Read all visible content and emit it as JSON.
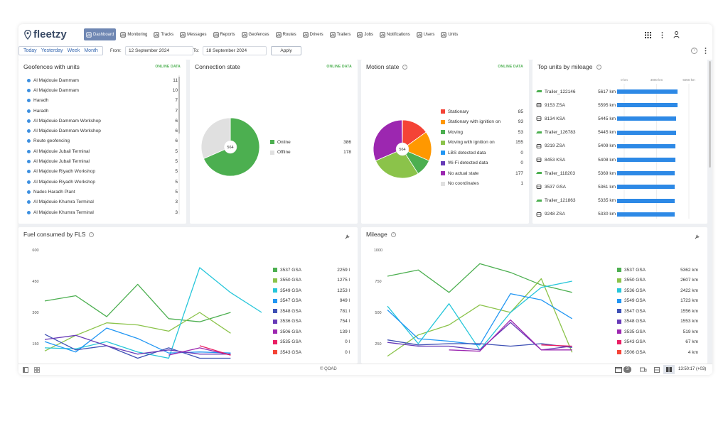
{
  "app": {
    "logo_text": "fleetzy"
  },
  "nav": [
    {
      "label": "Dashboard",
      "icon": "chart-icon",
      "active": true
    },
    {
      "label": "Monitoring",
      "icon": "globe-icon"
    },
    {
      "label": "Tracks",
      "icon": "tracks-icon"
    },
    {
      "label": "Messages",
      "icon": "messages-icon"
    },
    {
      "label": "Reports",
      "icon": "reports-icon"
    },
    {
      "label": "Geofences",
      "icon": "geofences-icon"
    },
    {
      "label": "Routes",
      "icon": "routes-icon"
    },
    {
      "label": "Drivers",
      "icon": "drivers-icon"
    },
    {
      "label": "Trailers",
      "icon": "trailers-icon"
    },
    {
      "label": "Jobs",
      "icon": "jobs-icon"
    },
    {
      "label": "Notifications",
      "icon": "notifications-icon"
    },
    {
      "label": "Users",
      "icon": "users-icon"
    },
    {
      "label": "Units",
      "icon": "units-icon"
    }
  ],
  "filter": {
    "periods": [
      "Today",
      "Yesterday",
      "Week",
      "Month"
    ],
    "from_label": "From:",
    "from_value": "12 September 2024",
    "to_label": "To:",
    "to_value": "18 September 2024",
    "apply_label": "Apply"
  },
  "online_data_label": "ONLINE DATA",
  "geofences": {
    "title": "Geofences with units",
    "items": [
      {
        "name": "Al Majdouie Dammam",
        "count": "11"
      },
      {
        "name": "Al Majdouie Dammam",
        "count": "10"
      },
      {
        "name": "Haradh",
        "count": "7"
      },
      {
        "name": "Haradh",
        "count": "7"
      },
      {
        "name": "Al Majdouie Dammam Workshop",
        "count": "6"
      },
      {
        "name": "Al Majdouie Dammam Workshop",
        "count": "6"
      },
      {
        "name": "Route geofencing",
        "count": "6"
      },
      {
        "name": "Al Majdouie Jubail Terminal",
        "count": "5"
      },
      {
        "name": "Al Majdouie Jubail Terminal",
        "count": "5"
      },
      {
        "name": "Al Majdouie Riyadh Workshop",
        "count": "5"
      },
      {
        "name": "Al Majdouie Riyadh Workshop",
        "count": "5"
      },
      {
        "name": "Nadec Haradh Plant",
        "count": "5"
      },
      {
        "name": "Al Majdouie Khumra Terminal",
        "count": "3"
      },
      {
        "name": "Al Majdouie Khumra Terminal",
        "count": "3"
      }
    ]
  },
  "connection": {
    "title": "Connection state",
    "total": "564",
    "items": [
      {
        "label": "Online",
        "value": 386,
        "color": "#4caf50"
      },
      {
        "label": "Offline",
        "value": 178,
        "color": "#e0e0e0"
      }
    ]
  },
  "motion": {
    "title": "Motion state",
    "total": "564",
    "items": [
      {
        "label": "Stationary",
        "value": 85,
        "color": "#f44336"
      },
      {
        "label": "Stationary with ignition on",
        "value": 93,
        "color": "#ff9800"
      },
      {
        "label": "Moving",
        "value": 53,
        "color": "#4caf50"
      },
      {
        "label": "Moving with ignition on",
        "value": 155,
        "color": "#8bc34a"
      },
      {
        "label": "LBS detected data",
        "value": 0,
        "color": "#2196f3"
      },
      {
        "label": "Wi-Fi detected data",
        "value": 0,
        "color": "#673ab7"
      },
      {
        "label": "No actual state",
        "value": 177,
        "color": "#9c27b0"
      },
      {
        "label": "No coordinates",
        "value": 1,
        "color": "#e0e0e0"
      }
    ]
  },
  "top_units": {
    "title": "Top units by mileage",
    "axis_ticks": [
      "0 km",
      "3000 km",
      "6000 km"
    ],
    "axis_max": 6000,
    "items": [
      {
        "name": "Trailer_122146",
        "km": 5617,
        "km_label": "5617 km",
        "type": "trailer"
      },
      {
        "name": "9153 ZSA",
        "km": 5595,
        "km_label": "5595 km",
        "type": "truck"
      },
      {
        "name": "8134 KSA",
        "km": 5445,
        "km_label": "5445 km",
        "type": "truck"
      },
      {
        "name": "Trailer_126783",
        "km": 5445,
        "km_label": "5445 km",
        "type": "trailer"
      },
      {
        "name": "9219 ZSA",
        "km": 5409,
        "km_label": "5409 km",
        "type": "truck"
      },
      {
        "name": "8453 KSA",
        "km": 5408,
        "km_label": "5408 km",
        "type": "truck"
      },
      {
        "name": "Trailer_118203",
        "km": 5369,
        "km_label": "5369 km",
        "type": "trailer"
      },
      {
        "name": "3537 GSA",
        "km": 5361,
        "km_label": "5361 km",
        "type": "truck"
      },
      {
        "name": "Trailer_121863",
        "km": 5335,
        "km_label": "5335 km",
        "type": "trailer"
      },
      {
        "name": "9248 ZSA",
        "km": 5330,
        "km_label": "5330 km",
        "type": "truck"
      }
    ]
  },
  "fuel": {
    "title": "Fuel consumed by FLS",
    "legend": [
      {
        "name": "3537 GSA",
        "value": "2259 l",
        "color": "#4caf50"
      },
      {
        "name": "3550 GSA",
        "value": "1275 l",
        "color": "#8bc34a"
      },
      {
        "name": "3549 GSA",
        "value": "1253 l",
        "color": "#26c6da"
      },
      {
        "name": "3547 GSA",
        "value": "949 l",
        "color": "#2196f3"
      },
      {
        "name": "3548 GSA",
        "value": "781 l",
        "color": "#3f51b5"
      },
      {
        "name": "3536 GSA",
        "value": "754 l",
        "color": "#673ab7"
      },
      {
        "name": "3506 GSA",
        "value": "139 l",
        "color": "#9c27b0"
      },
      {
        "name": "3535 GSA",
        "value": "0 l",
        "color": "#e91e63"
      },
      {
        "name": "3543 GSA",
        "value": "0 l",
        "color": "#f44336"
      }
    ]
  },
  "mileage": {
    "title": "Mileage",
    "legend": [
      {
        "name": "3537 GSA",
        "value": "5362 km",
        "color": "#4caf50"
      },
      {
        "name": "3550 GSA",
        "value": "2607 km",
        "color": "#8bc34a"
      },
      {
        "name": "3536 GSA",
        "value": "2422 km",
        "color": "#26c6da"
      },
      {
        "name": "3549 GSA",
        "value": "1723 km",
        "color": "#2196f3"
      },
      {
        "name": "3547 GSA",
        "value": "1556 km",
        "color": "#3f51b5"
      },
      {
        "name": "3548 GSA",
        "value": "1553 km",
        "color": "#673ab7"
      },
      {
        "name": "3535 GSA",
        "value": "519 km",
        "color": "#9c27b0"
      },
      {
        "name": "3543 GSA",
        "value": "67 km",
        "color": "#e91e63"
      },
      {
        "name": "3506 GSA",
        "value": "4 km",
        "color": "#f44336"
      }
    ]
  },
  "chart_data": [
    {
      "type": "pie",
      "title": "Connection state",
      "categories": [
        "Online",
        "Offline"
      ],
      "values": [
        386,
        178
      ]
    },
    {
      "type": "pie",
      "title": "Motion state",
      "categories": [
        "Stationary",
        "Stationary with ignition on",
        "Moving",
        "Moving with ignition on",
        "LBS detected data",
        "Wi-Fi detected data",
        "No actual state",
        "No coordinates"
      ],
      "values": [
        85,
        93,
        53,
        155,
        0,
        0,
        177,
        1
      ]
    },
    {
      "type": "bar",
      "title": "Top units by mileage",
      "categories": [
        "Trailer_122146",
        "9153 ZSA",
        "8134 KSA",
        "Trailer_126783",
        "9219 ZSA",
        "8453 KSA",
        "Trailer_118203",
        "3537 GSA",
        "Trailer_121863",
        "9248 ZSA"
      ],
      "values": [
        5617,
        5595,
        5445,
        5445,
        5409,
        5408,
        5369,
        5361,
        5335,
        5330
      ],
      "xlim": [
        0,
        6000
      ]
    },
    {
      "type": "line",
      "title": "Fuel consumed by FLS",
      "ylim": [
        100,
        600
      ],
      "yticks": [
        "600",
        "450",
        "300",
        "150"
      ],
      "x": [
        1,
        2,
        3,
        4,
        5,
        6,
        7,
        8
      ],
      "series": [
        {
          "name": "3537 GSA",
          "color": "#4caf50",
          "values": [
            355,
            380,
            280,
            435,
            270,
            255,
            300,
            null
          ]
        },
        {
          "name": "3550 GSA",
          "color": "#8bc34a",
          "values": [
            115,
            190,
            250,
            240,
            210,
            300,
            200,
            null
          ]
        },
        {
          "name": "3549 GSA",
          "color": "#26c6da",
          "values": [
            130,
            125,
            160,
            110,
            80,
            515,
            395,
            300
          ]
        },
        {
          "name": "3547 GSA",
          "color": "#2196f3",
          "values": [
            160,
            110,
            225,
            175,
            105,
            110,
            105,
            null
          ]
        },
        {
          "name": "3548 GSA",
          "color": "#3f51b5",
          "values": [
            195,
            120,
            140,
            80,
            130,
            80,
            80,
            null
          ]
        },
        {
          "name": "3536 GSA",
          "color": "#673ab7",
          "values": [
            170,
            190,
            140,
            100,
            120,
            100,
            100,
            null
          ]
        },
        {
          "name": "3506 GSA",
          "color": "#9c27b0",
          "values": [
            null,
            null,
            null,
            null,
            95,
            130,
            95,
            null
          ]
        },
        {
          "name": "3535 GSA",
          "color": "#e91e63",
          "values": [
            null,
            null,
            null,
            null,
            null,
            140,
            95,
            null
          ]
        }
      ]
    },
    {
      "type": "line",
      "title": "Mileage",
      "ylim": [
        100,
        1000
      ],
      "yticks": [
        "1000",
        "750",
        "500",
        "250"
      ],
      "x": [
        1,
        2,
        3,
        4,
        5,
        6,
        7,
        8
      ],
      "series": [
        {
          "name": "3537 GSA",
          "color": "#4caf50",
          "values": [
            790,
            840,
            660,
            890,
            820,
            720,
            660,
            null
          ]
        },
        {
          "name": "3550 GSA",
          "color": "#8bc34a",
          "values": [
            150,
            320,
            400,
            560,
            500,
            770,
            180,
            null
          ]
        },
        {
          "name": "3536 GSA",
          "color": "#26c6da",
          "values": [
            550,
            250,
            570,
            200,
            500,
            700,
            750,
            null
          ]
        },
        {
          "name": "3549 GSA",
          "color": "#2196f3",
          "values": [
            520,
            290,
            270,
            240,
            650,
            600,
            450,
            null
          ]
        },
        {
          "name": "3547 GSA",
          "color": "#3f51b5",
          "values": [
            280,
            240,
            250,
            250,
            230,
            250,
            220,
            null
          ]
        },
        {
          "name": "3548 GSA",
          "color": "#673ab7",
          "values": [
            260,
            230,
            230,
            200,
            420,
            200,
            230,
            null
          ]
        },
        {
          "name": "3535 GSA",
          "color": "#9c27b0",
          "values": [
            null,
            null,
            200,
            190,
            440,
            200,
            200,
            null
          ]
        },
        {
          "name": "3543 GSA",
          "color": "#e91e63",
          "values": [
            null,
            null,
            null,
            null,
            null,
            240,
            230,
            null
          ]
        }
      ]
    }
  ],
  "footer": {
    "copyright": "© QOAD",
    "badge_count": "3",
    "time": "13:50:17 (+03)"
  }
}
